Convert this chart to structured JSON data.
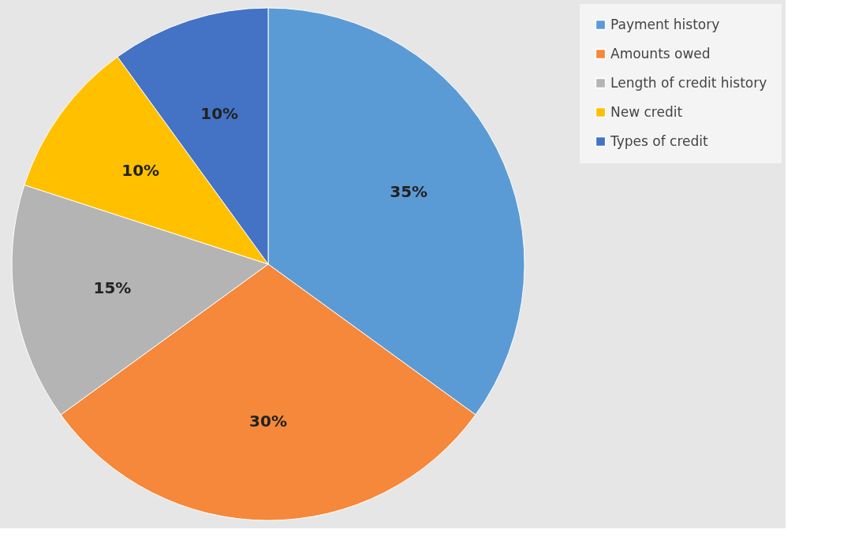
{
  "chart_data": {
    "type": "pie",
    "categories": [
      "Payment history",
      "Amounts owed",
      "Length of credit history",
      "New credit",
      "Types of credit"
    ],
    "values": [
      35,
      30,
      15,
      10,
      10
    ],
    "colors": [
      "#5b9bd5",
      "#f5883a",
      "#b4b4b4",
      "#ffc000",
      "#4472c4"
    ],
    "value_labels": [
      "35%",
      "30%",
      "15%",
      "10%",
      "10%"
    ],
    "legend": "right"
  }
}
